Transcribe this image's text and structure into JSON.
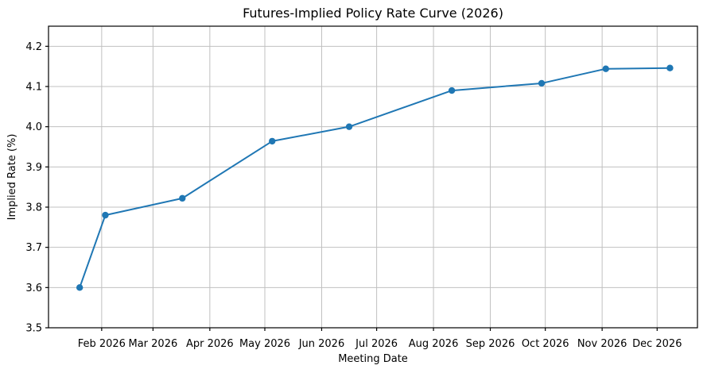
{
  "chart_data": {
    "type": "line",
    "title": "Futures-Implied Policy Rate Curve (2026)",
    "xlabel": "Meeting Date",
    "ylabel": "Implied Rate (%)",
    "grid": true,
    "legend": false,
    "x_axis": {
      "unit": "day_of_year_2026",
      "range": [
        2,
        356
      ],
      "ticks": [
        {
          "label": "Feb 2026",
          "day": 31
        },
        {
          "label": "Mar 2026",
          "day": 59
        },
        {
          "label": "Apr 2026",
          "day": 90
        },
        {
          "label": "May 2026",
          "day": 120
        },
        {
          "label": "Jun 2026",
          "day": 151
        },
        {
          "label": "Jul 2026",
          "day": 181
        },
        {
          "label": "Aug 2026",
          "day": 212
        },
        {
          "label": "Sep 2026",
          "day": 243
        },
        {
          "label": "Oct 2026",
          "day": 273
        },
        {
          "label": "Nov 2026",
          "day": 304
        },
        {
          "label": "Dec 2026",
          "day": 334
        }
      ]
    },
    "y_axis": {
      "range": [
        3.5,
        4.25
      ],
      "ticks": [
        3.5,
        3.6,
        3.7,
        3.8,
        3.9,
        4.0,
        4.1,
        4.2
      ],
      "tick_decimals": 1
    },
    "series": [
      {
        "name": "futures-implied-policy-rate",
        "color": "#1f77b4",
        "marker": "circle",
        "points": [
          {
            "date": "2026-01-20",
            "day": 19,
            "rate": 3.6
          },
          {
            "date": "2026-02-03",
            "day": 33,
            "rate": 3.78
          },
          {
            "date": "2026-03-17",
            "day": 75,
            "rate": 3.822
          },
          {
            "date": "2026-05-05",
            "day": 124,
            "rate": 3.964
          },
          {
            "date": "2026-06-16",
            "day": 166,
            "rate": 4.0
          },
          {
            "date": "2026-08-11",
            "day": 222,
            "rate": 4.09
          },
          {
            "date": "2026-09-29",
            "day": 271,
            "rate": 4.108
          },
          {
            "date": "2026-11-03",
            "day": 306,
            "rate": 4.144
          },
          {
            "date": "2026-12-08",
            "day": 341,
            "rate": 4.146
          }
        ]
      }
    ],
    "colors": {
      "line": "#1f77b4",
      "grid": "#c0c0c0",
      "spine": "#000000",
      "tick": "#000000",
      "text": "#000000",
      "background": "#ffffff"
    }
  }
}
